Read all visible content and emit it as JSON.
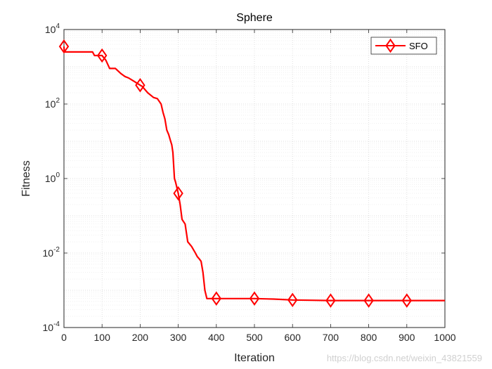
{
  "chart_data": {
    "type": "line",
    "title": "Sphere",
    "xlabel": "Iteration",
    "ylabel": "Fitness",
    "xlim": [
      0,
      1000
    ],
    "ylim": [
      0.0001,
      10000
    ],
    "yscale": "log",
    "grid": true,
    "minor_grid": true,
    "legend_position": "top-right",
    "x_ticks": [
      0,
      100,
      200,
      300,
      400,
      500,
      600,
      700,
      800,
      900,
      1000
    ],
    "x_tick_labels": [
      "0",
      "100",
      "200",
      "300",
      "400",
      "500",
      "600",
      "700",
      "800",
      "900",
      "1000"
    ],
    "y_ticks": [
      0.0001,
      0.01,
      1,
      100,
      10000
    ],
    "y_tick_labels": [
      {
        "base": "10",
        "exp": "-4"
      },
      {
        "base": "10",
        "exp": "-2"
      },
      {
        "base": "10",
        "exp": "0"
      },
      {
        "base": "10",
        "exp": "2"
      },
      {
        "base": "10",
        "exp": "4"
      }
    ],
    "series": [
      {
        "name": "SFO",
        "color": "#ff0000",
        "marker": "diamond",
        "x": [
          0,
          1,
          75,
          80,
          100,
          110,
          120,
          135,
          150,
          160,
          170,
          185,
          200,
          205,
          220,
          235,
          245,
          255,
          260,
          265,
          270,
          275,
          280,
          283,
          286,
          290,
          293,
          296,
          300,
          305,
          310,
          318,
          325,
          335,
          345,
          350,
          355,
          360,
          365,
          370,
          375,
          400,
          450,
          500,
          550,
          600,
          650,
          700,
          800,
          900,
          1000
        ],
        "y": [
          3500,
          2500,
          2500,
          2000,
          2000,
          1500,
          900,
          900,
          650,
          550,
          500,
          400,
          320,
          300,
          200,
          150,
          140,
          100,
          60,
          40,
          20,
          15,
          10,
          8,
          5,
          1,
          0.8,
          0.6,
          0.4,
          0.2,
          0.08,
          0.06,
          0.02,
          0.015,
          0.01,
          0.008,
          0.007,
          0.006,
          0.003,
          0.001,
          0.0006,
          0.0006,
          0.0006,
          0.0006,
          0.00058,
          0.00055,
          0.00054,
          0.00053,
          0.00053,
          0.00053,
          0.00053
        ],
        "markers_x": [
          0,
          100,
          200,
          300,
          400,
          500,
          600,
          700,
          800,
          900
        ],
        "markers_y": [
          3500,
          2000,
          320,
          0.4,
          0.0006,
          0.0006,
          0.00055,
          0.00053,
          0.00053,
          0.00053
        ]
      }
    ]
  },
  "watermark": "https://blog.csdn.net/weixin_43821559"
}
